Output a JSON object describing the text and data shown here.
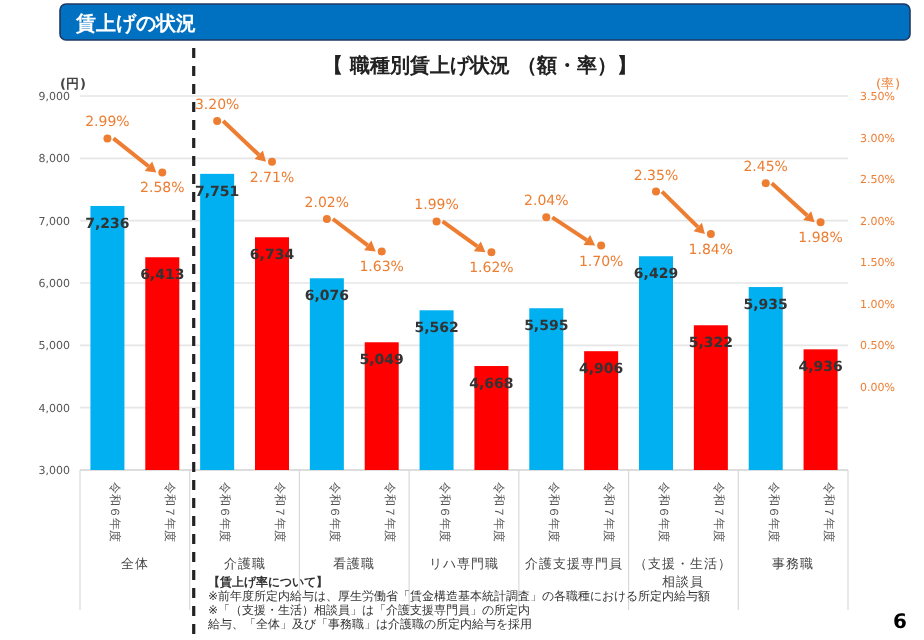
{
  "chart_data": {
    "type": "bar",
    "title": "賃上げの状況",
    "subtitle": "【 職種別賃上げ状況 （額・率）】",
    "ylabel": "(円)",
    "y2label": "(率)",
    "categories": [
      "全体",
      "介護職",
      "看護職",
      "リハ専門職",
      "介護支援専門員",
      "（支援・生活）相談員",
      "事務職"
    ],
    "series": [
      {
        "name": "令和６年度",
        "color": "#00b0f0",
        "values": [
          7236,
          7751,
          6076,
          5562,
          5595,
          6429,
          5935
        ],
        "value_labels": [
          "7,236",
          "7,751",
          "6,076",
          "5,562",
          "5,595",
          "6,429",
          "5,935"
        ]
      },
      {
        "name": "令和７年度",
        "color": "#ff0000",
        "values": [
          6413,
          6734,
          5049,
          4668,
          4906,
          5322,
          4936
        ],
        "value_labels": [
          "6,413",
          "6,734",
          "5,049",
          "4,668",
          "4,906",
          "5,322",
          "4,936"
        ]
      },
      {
        "type": "scatter",
        "axis": "y2",
        "marker": "circle",
        "color": "#ed7d31",
        "values": [
          2.99,
          3.2,
          2.02,
          1.99,
          2.04,
          2.35,
          2.45
        ],
        "value_labels": [
          "2.99%",
          "3.20%",
          "2.02%",
          "1.99%",
          "2.04%",
          "2.35%",
          "2.45%"
        ]
      },
      {
        "type": "scatter",
        "axis": "y2",
        "marker": "circle",
        "color": "#ed7d31",
        "values": [
          2.58,
          2.71,
          1.63,
          1.62,
          1.7,
          1.84,
          1.98
        ],
        "value_labels": [
          "2.58%",
          "2.71%",
          "1.63%",
          "1.62%",
          "1.70%",
          "1.84%",
          "1.98%"
        ]
      }
    ],
    "ylim": [
      3000,
      9000
    ],
    "yticks": [
      {
        "value": 3000,
        "label": "3,000"
      },
      {
        "value": 4000,
        "label": "4,000"
      },
      {
        "value": 5000,
        "label": "5,000"
      },
      {
        "value": 6000,
        "label": "6,000"
      },
      {
        "value": 7000,
        "label": "7,000"
      },
      {
        "value": 8000,
        "label": "8,000"
      },
      {
        "value": 9000,
        "label": "9,000"
      }
    ],
    "y2lim": [
      -1,
      3.5
    ],
    "y2ticks": [
      {
        "value": 0,
        "label": "0.00%"
      },
      {
        "value": 0.5,
        "label": "0.50%"
      },
      {
        "value": 1,
        "label": "1.00%"
      },
      {
        "value": 1.5,
        "label": "1.50%"
      },
      {
        "value": 2,
        "label": "2.00%"
      },
      {
        "value": 2.5,
        "label": "2.50%"
      },
      {
        "value": 3,
        "label": "3.00%"
      },
      {
        "value": 3.5,
        "label": "3.50%"
      }
    ],
    "grid": "y",
    "annotations": [
      "【賃上げ率について】",
      "※前年度所定内給与は、厚生労働省「賃金構造基本統計調査」の各職種における所定内給与額",
      "※「（支援・生活）相談員」は「介護支援専門員」の所定内給与、「全体」及び「事務職」は介護職の所定内給与を採用",
      "6"
    ]
  }
}
